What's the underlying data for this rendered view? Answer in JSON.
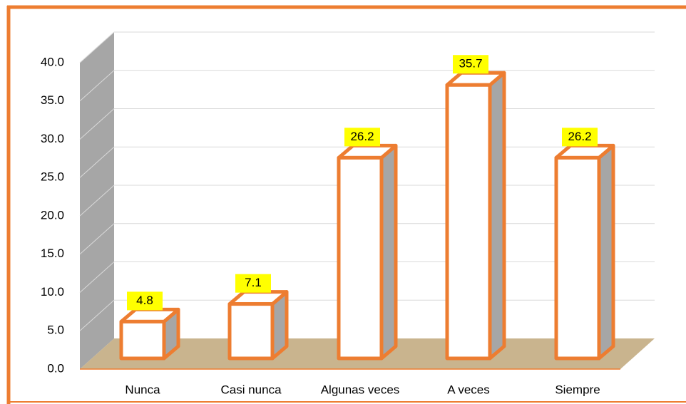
{
  "chart_data": {
    "type": "bar3d",
    "categories": [
      "Nunca",
      "Casi nunca",
      "Algunas veces",
      "A veces",
      "Siempre"
    ],
    "values": [
      4.8,
      7.1,
      26.2,
      35.7,
      26.2
    ],
    "color": "#ffffff",
    "edge_color": "#ed7d31",
    "label_color": "#ffff00",
    "ylim": [
      0,
      40
    ],
    "yticks": [
      {
        "value": 0,
        "label": "0.0"
      },
      {
        "value": 5,
        "label": "5.0"
      },
      {
        "value": 10,
        "label": "10.0"
      },
      {
        "value": 15,
        "label": "15.0"
      },
      {
        "value": 20,
        "label": "20.0"
      },
      {
        "value": 25,
        "label": "25.0"
      },
      {
        "value": 30,
        "label": "30.0"
      },
      {
        "value": 35,
        "label": "35.0"
      },
      {
        "value": 40,
        "label": "40.0"
      }
    ],
    "grid": true
  }
}
